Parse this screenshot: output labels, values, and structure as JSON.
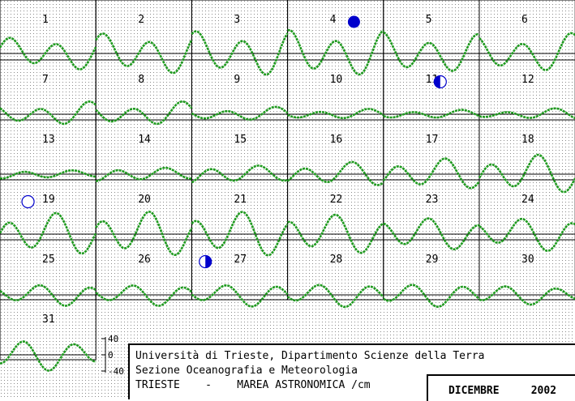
{
  "chart_data": {
    "type": "line",
    "title": "TRIESTE - MAREA ASTRONOMICA /cm",
    "month": "DICEMBRE",
    "year": "2002",
    "institution": "Università di Trieste, Dipartimento Scienze della Terra",
    "section": "Sezione Oceanografia e Meteorologia",
    "location": "TRIESTE",
    "subject": "MAREA ASTRONOMICA /cm",
    "unit": "cm",
    "y_scale": {
      "labels": [
        "40",
        "0",
        "-40"
      ],
      "values": [
        40,
        0,
        -40
      ]
    },
    "days": [
      {
        "day": 1,
        "amplitudes": [
          30,
          32
        ]
      },
      {
        "day": 2,
        "amplitudes": [
          38,
          40
        ]
      },
      {
        "day": 3,
        "amplitudes": [
          42,
          44
        ]
      },
      {
        "day": 4,
        "amplitudes": [
          44,
          44
        ]
      },
      {
        "day": 5,
        "amplitudes": [
          40,
          36
        ]
      },
      {
        "day": 6,
        "amplitudes": [
          32,
          38
        ]
      },
      {
        "day": 7,
        "amplitudes": [
          16,
          24
        ]
      },
      {
        "day": 8,
        "amplitudes": [
          18,
          24
        ]
      },
      {
        "day": 9,
        "amplitudes": [
          10,
          14
        ]
      },
      {
        "day": 10,
        "amplitudes": [
          8,
          10
        ]
      },
      {
        "day": 11,
        "amplitudes": [
          8,
          8
        ]
      },
      {
        "day": 12,
        "amplitudes": [
          6,
          12
        ]
      },
      {
        "day": 13,
        "amplitudes": [
          10,
          6
        ]
      },
      {
        "day": 14,
        "amplitudes": [
          16,
          10
        ]
      },
      {
        "day": 15,
        "amplitudes": [
          20,
          14
        ]
      },
      {
        "day": 16,
        "amplitudes": [
          20,
          24
        ]
      },
      {
        "day": 17,
        "amplitudes": [
          28,
          30
        ]
      },
      {
        "day": 18,
        "amplitudes": [
          34,
          38
        ]
      },
      {
        "day": 19,
        "amplitudes": [
          40,
          40
        ]
      },
      {
        "day": 20,
        "amplitudes": [
          44,
          42
        ]
      },
      {
        "day": 21,
        "amplitudes": [
          44,
          42
        ]
      },
      {
        "day": 22,
        "amplitudes": [
          40,
          36
        ]
      },
      {
        "day": 23,
        "amplitudes": [
          34,
          28
        ]
      },
      {
        "day": 24,
        "amplitudes": [
          28,
          34
        ]
      },
      {
        "day": 25,
        "amplitudes": [
          18,
          22
        ]
      },
      {
        "day": 26,
        "amplitudes": [
          18,
          22
        ]
      },
      {
        "day": 27,
        "amplitudes": [
          18,
          24
        ]
      },
      {
        "day": 28,
        "amplitudes": [
          20,
          24
        ]
      },
      {
        "day": 29,
        "amplitudes": [
          22,
          22
        ]
      },
      {
        "day": 30,
        "amplitudes": [
          20,
          16
        ]
      },
      {
        "day": 31,
        "amplitudes": [
          32,
          26
        ]
      }
    ],
    "moon_phases": [
      {
        "day": 4,
        "phase": "new moon",
        "fraction": 0.65
      },
      {
        "day": 11,
        "phase": "first quarter",
        "fraction": 0.55
      },
      {
        "day": 19,
        "phase": "full moon",
        "fraction": 0.25
      },
      {
        "day": 27,
        "phase": "last quarter",
        "fraction": 0.1
      }
    ],
    "grid": true
  },
  "colors": {
    "curve": "#1f9a1f",
    "moon": "#0000cc",
    "grid": "#888888",
    "cell_border": "#000000",
    "background": "#ffffff"
  }
}
